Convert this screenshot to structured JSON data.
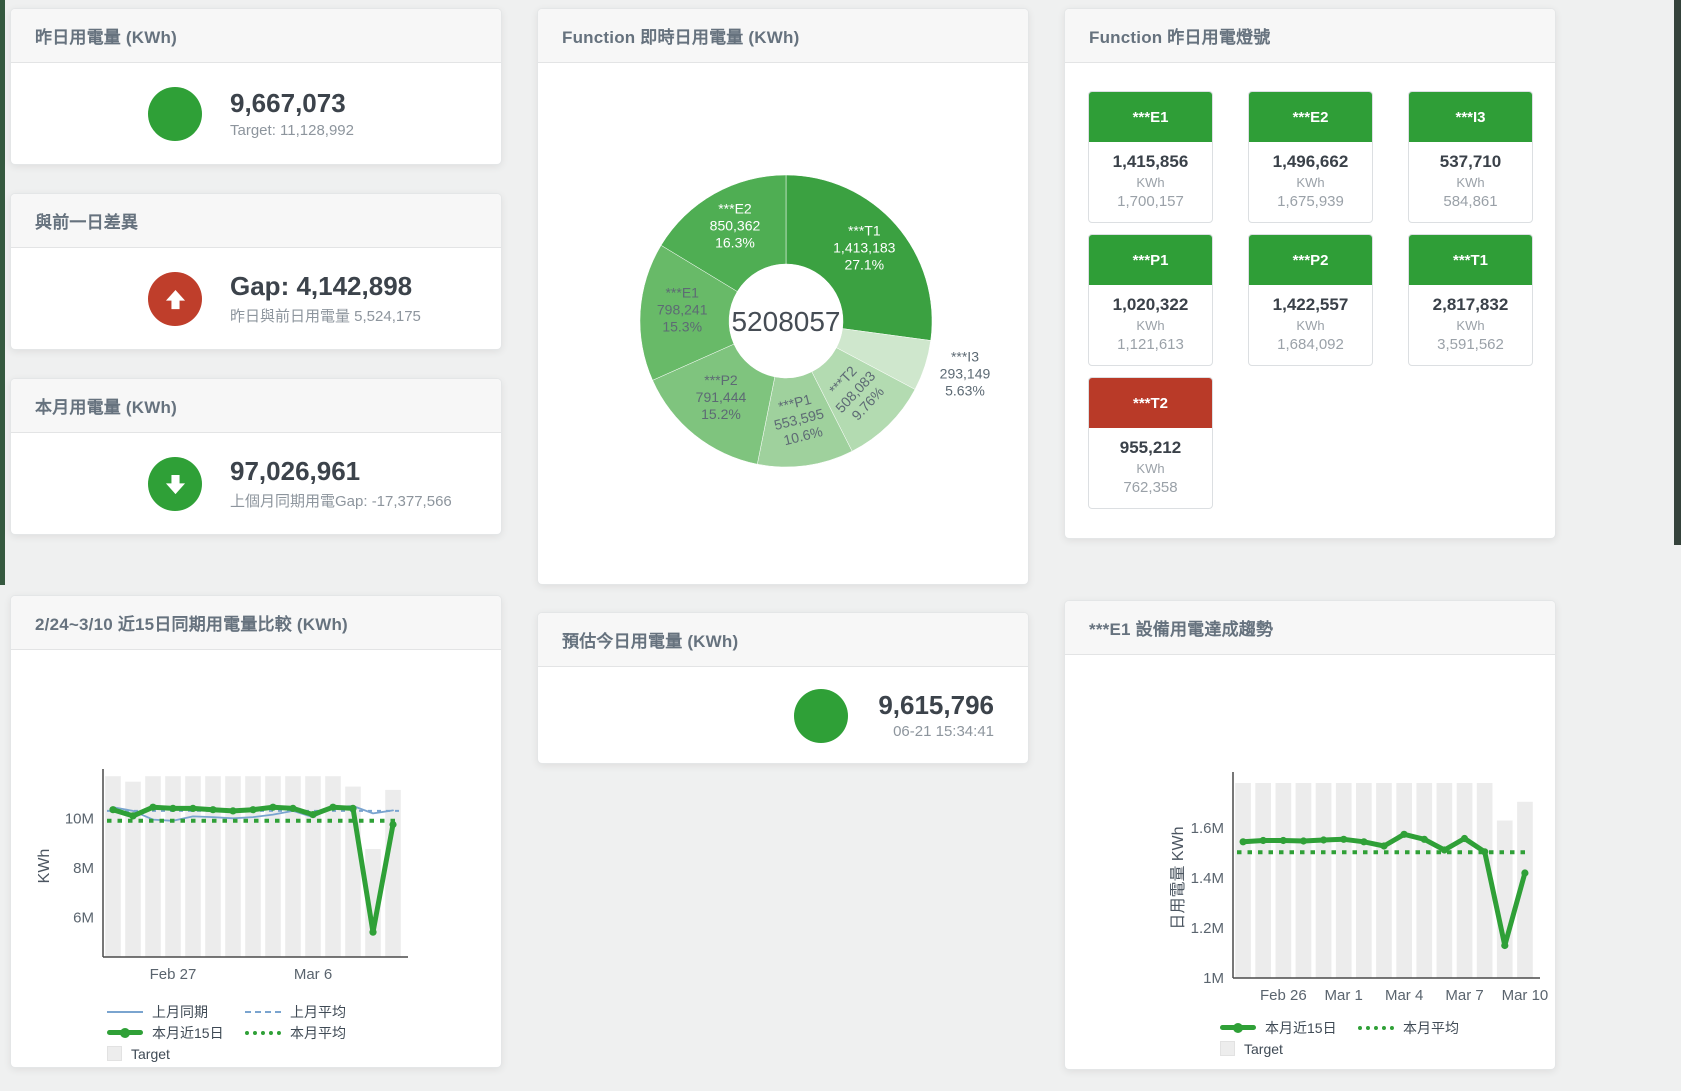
{
  "colors": {
    "green": "#2fa037",
    "red": "#bf3e2b",
    "card_green": "#2f9e37",
    "card_red": "#b93a28",
    "blue_line": "#7aa4cf",
    "target_bar": "#ececec",
    "panel_header_text": "#66727e"
  },
  "panels": {
    "yesterday": {
      "title": "昨日用電量 (KWh)",
      "value": "9,667,073",
      "subtitle": "Target: 11,128,992",
      "status": "green"
    },
    "diff": {
      "title": "與前一日差異",
      "value": "Gap: 4,142,898",
      "subtitle": "昨日與前日用電量 5,524,175",
      "status": "red-up"
    },
    "month": {
      "title": "本月用電量 (KWh)",
      "value": "97,026,961",
      "subtitle": "上個月同期用電Gap: -17,377,566",
      "status": "green-down"
    },
    "estimate": {
      "title": "預估今日用電量 (KWh)",
      "value": "9,615,796",
      "subtitle": "06-21 15:34:41",
      "status": "green"
    },
    "lights": {
      "title": "Function 昨日用電燈號",
      "cards": [
        {
          "label": "***E1",
          "value": "1,415,856",
          "unit": "KWh",
          "target": "1,700,157",
          "status": "green"
        },
        {
          "label": "***E2",
          "value": "1,496,662",
          "unit": "KWh",
          "target": "1,675,939",
          "status": "green"
        },
        {
          "label": "***I3",
          "value": "537,710",
          "unit": "KWh",
          "target": "584,861",
          "status": "green"
        },
        {
          "label": "***P1",
          "value": "1,020,322",
          "unit": "KWh",
          "target": "1,121,613",
          "status": "green"
        },
        {
          "label": "***P2",
          "value": "1,422,557",
          "unit": "KWh",
          "target": "1,684,092",
          "status": "green"
        },
        {
          "label": "***T1",
          "value": "2,817,832",
          "unit": "KWh",
          "target": "3,591,562",
          "status": "green"
        },
        {
          "label": "***T2",
          "value": "955,212",
          "unit": "KWh",
          "target": "762,358",
          "status": "red"
        }
      ]
    }
  },
  "chart_data": [
    {
      "id": "realtime-donut",
      "type": "pie",
      "title": "Function 即時日用電量 (KWh)",
      "center_total": "5208057",
      "slices": [
        {
          "name": "***T1",
          "value": 1413183,
          "label_value": "1,413,183",
          "pct": "27.1%",
          "color": "#3ba141",
          "text": "#ffffff"
        },
        {
          "name": "***I3",
          "value": 293149,
          "label_value": "293,149",
          "pct": "5.63%",
          "color": "#cfe7cd",
          "text": "#5d6a74",
          "outside": true
        },
        {
          "name": "***T2",
          "value": 508083,
          "label_value": "508,083",
          "pct": "9.76%",
          "color": "#b3dbb1",
          "text": "#5d6a74",
          "rotate": -47
        },
        {
          "name": "***P1",
          "value": 553595,
          "label_value": "553,595",
          "pct": "10.6%",
          "color": "#9fd19d",
          "text": "#5d6a74",
          "rotate": -14
        },
        {
          "name": "***P2",
          "value": 791444,
          "label_value": "791,444",
          "pct": "15.2%",
          "color": "#7fc47e",
          "text": "#5d6a74"
        },
        {
          "name": "***E1",
          "value": 798241,
          "label_value": "798,241",
          "pct": "15.3%",
          "color": "#68ba68",
          "text": "#5d6a74"
        },
        {
          "name": "***E2",
          "value": 850362,
          "label_value": "850,362",
          "pct": "16.3%",
          "color": "#4fae53",
          "text": "#ffffff"
        }
      ]
    },
    {
      "id": "compare-15day",
      "type": "line",
      "title": "2/24~3/10 近15日同期用電量比較 (KWh)",
      "ylabel": "KWh",
      "ylim": [
        4400000,
        11750000
      ],
      "yticks": [
        {
          "value": 6000000,
          "label": "6M"
        },
        {
          "value": 8000000,
          "label": "8M"
        },
        {
          "value": 10000000,
          "label": "10M"
        }
      ],
      "xticks": [
        {
          "index": 3,
          "label": "Feb 27"
        },
        {
          "index": 10,
          "label": "Mar 6"
        }
      ],
      "target": {
        "name": "Target",
        "color": "#ececec",
        "values": [
          11700000,
          11480000,
          11700000,
          11700000,
          11700000,
          11700000,
          11700000,
          11700000,
          11700000,
          11700000,
          11700000,
          11700000,
          11280000,
          8760000,
          11150000
        ]
      },
      "series": [
        {
          "name": "上月同期",
          "color": "#7aa4cf",
          "style": "solid",
          "width": 1.8,
          "values": [
            10450000,
            10300000,
            9950000,
            9900000,
            10080000,
            10050000,
            10000000,
            10050000,
            10150000,
            10300000,
            10050000,
            10450000,
            10500000,
            10200000,
            10320000
          ]
        },
        {
          "name": "上月平均",
          "color": "#7aa4cf",
          "style": "dashed",
          "width": 2,
          "const": 10300000
        },
        {
          "name": "本月近15日",
          "color": "#2fa037",
          "style": "solid",
          "width": 5,
          "markers": true,
          "values": [
            10350000,
            10100000,
            10450000,
            10400000,
            10400000,
            10350000,
            10300000,
            10350000,
            10450000,
            10400000,
            10150000,
            10450000,
            10400000,
            5400000,
            9750000
          ]
        },
        {
          "name": "本月平均",
          "color": "#2fa037",
          "style": "dotted",
          "width": 4,
          "const": 9900000
        }
      ],
      "legend_rows": [
        [
          {
            "label": "上月同期",
            "swatch": "line-blue"
          },
          {
            "label": "上月平均",
            "swatch": "dash-blue"
          }
        ],
        [
          {
            "label": "本月近15日",
            "swatch": "thick-green"
          },
          {
            "label": "本月平均",
            "swatch": "dot-green"
          }
        ],
        [
          {
            "label": "Target",
            "swatch": "square-gray"
          }
        ]
      ]
    },
    {
      "id": "e1-trend",
      "type": "line",
      "title": "***E1 設備用電達成趨勢",
      "ylabel": "日用電量 KWh",
      "ylim": [
        1000000,
        1800000
      ],
      "yticks": [
        {
          "value": 1000000,
          "label": "1M"
        },
        {
          "value": 1200000,
          "label": "1.2M"
        },
        {
          "value": 1400000,
          "label": "1.4M"
        },
        {
          "value": 1600000,
          "label": "1.6M"
        }
      ],
      "xticks": [
        {
          "index": 2,
          "label": "Feb 26"
        },
        {
          "index": 5,
          "label": "Mar 1"
        },
        {
          "index": 8,
          "label": "Mar 4"
        },
        {
          "index": 11,
          "label": "Mar 7"
        },
        {
          "index": 14,
          "label": "Mar 10"
        }
      ],
      "target": {
        "name": "Target",
        "color": "#ececec",
        "values": [
          1780000,
          1780000,
          1780000,
          1780000,
          1780000,
          1780000,
          1780000,
          1780000,
          1780000,
          1780000,
          1780000,
          1780000,
          1780000,
          1630000,
          1705000
        ]
      },
      "series": [
        {
          "name": "本月近15日",
          "color": "#2fa037",
          "style": "solid",
          "width": 5,
          "markers": true,
          "values": [
            1545000,
            1550000,
            1550000,
            1548000,
            1552000,
            1555000,
            1545000,
            1528000,
            1575000,
            1555000,
            1512000,
            1558000,
            1505000,
            1130000,
            1420000
          ]
        },
        {
          "name": "本月平均",
          "color": "#2fa037",
          "style": "dotted",
          "width": 4,
          "const": 1503000
        }
      ],
      "legend_rows": [
        [
          {
            "label": "本月近15日",
            "swatch": "thick-green"
          },
          {
            "label": "本月平均",
            "swatch": "dot-green"
          }
        ],
        [
          {
            "label": "Target",
            "swatch": "square-gray"
          }
        ]
      ]
    }
  ]
}
